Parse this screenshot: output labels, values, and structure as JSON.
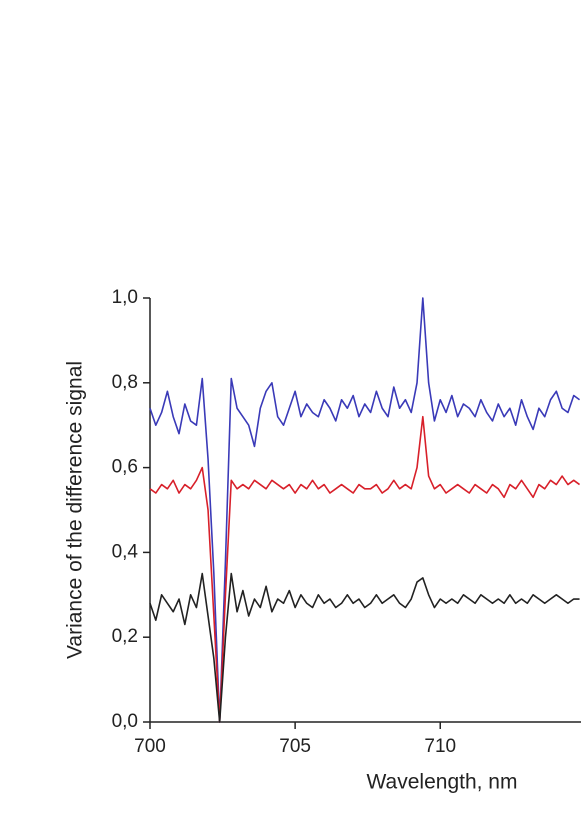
{
  "chart_data": {
    "type": "line",
    "xlabel": "Wavelength, nm",
    "ylabel": "Variance of the difference signal",
    "xlim": [
      700,
      714.85
    ],
    "ylim": [
      0,
      1
    ],
    "xticks": [
      700,
      705,
      710
    ],
    "yticks": [
      {
        "value": 0,
        "label": "0,0"
      },
      {
        "value": 0.2,
        "label": "0,2"
      },
      {
        "value": 0.4,
        "label": "0,4"
      },
      {
        "value": 0.6,
        "label": "0,6"
      },
      {
        "value": 0.8,
        "label": "0,8"
      },
      {
        "value": 1,
        "label": "1,0"
      }
    ],
    "x": [
      700,
      700.2,
      700.4,
      700.6,
      700.8,
      701,
      701.2,
      701.4,
      701.6,
      701.8,
      702,
      702.2,
      702.4,
      702.6,
      702.8,
      703,
      703.2,
      703.4,
      703.6,
      703.8,
      704,
      704.2,
      704.4,
      704.6,
      704.8,
      705,
      705.2,
      705.4,
      705.6,
      705.8,
      706,
      706.2,
      706.4,
      706.6,
      706.8,
      707,
      707.2,
      707.4,
      707.6,
      707.8,
      708,
      708.2,
      708.4,
      708.6,
      708.8,
      709,
      709.2,
      709.4,
      709.6,
      709.8,
      710,
      710.2,
      710.4,
      710.6,
      710.8,
      711,
      711.2,
      711.4,
      711.6,
      711.8,
      712,
      712.2,
      712.4,
      712.6,
      712.8,
      713,
      713.2,
      713.4,
      713.6,
      713.8,
      714,
      714.2,
      714.4,
      714.6,
      714.8
    ],
    "series": [
      {
        "color": "#3a3ab8",
        "values": [
          0.74,
          0.7,
          0.73,
          0.78,
          0.72,
          0.68,
          0.75,
          0.71,
          0.7,
          0.81,
          0.62,
          0.35,
          0.0,
          0.38,
          0.81,
          0.74,
          0.72,
          0.7,
          0.65,
          0.74,
          0.78,
          0.8,
          0.72,
          0.7,
          0.74,
          0.78,
          0.72,
          0.75,
          0.73,
          0.72,
          0.76,
          0.74,
          0.71,
          0.76,
          0.74,
          0.77,
          0.72,
          0.75,
          0.73,
          0.78,
          0.74,
          0.72,
          0.79,
          0.74,
          0.76,
          0.73,
          0.8,
          1.0,
          0.8,
          0.71,
          0.76,
          0.73,
          0.77,
          0.72,
          0.75,
          0.74,
          0.72,
          0.76,
          0.73,
          0.71,
          0.75,
          0.72,
          0.74,
          0.7,
          0.76,
          0.72,
          0.69,
          0.74,
          0.72,
          0.76,
          0.78,
          0.74,
          0.73,
          0.77,
          0.76
        ]
      },
      {
        "color": "#d8202a",
        "values": [
          0.55,
          0.54,
          0.56,
          0.55,
          0.57,
          0.54,
          0.56,
          0.55,
          0.57,
          0.6,
          0.5,
          0.25,
          0.0,
          0.3,
          0.57,
          0.55,
          0.56,
          0.55,
          0.57,
          0.56,
          0.55,
          0.57,
          0.56,
          0.55,
          0.56,
          0.54,
          0.56,
          0.55,
          0.57,
          0.55,
          0.56,
          0.54,
          0.55,
          0.56,
          0.55,
          0.54,
          0.56,
          0.55,
          0.55,
          0.56,
          0.54,
          0.55,
          0.57,
          0.55,
          0.56,
          0.55,
          0.6,
          0.72,
          0.58,
          0.55,
          0.56,
          0.54,
          0.55,
          0.56,
          0.55,
          0.54,
          0.56,
          0.55,
          0.54,
          0.56,
          0.55,
          0.53,
          0.56,
          0.55,
          0.57,
          0.55,
          0.53,
          0.56,
          0.55,
          0.57,
          0.56,
          0.58,
          0.56,
          0.57,
          0.56
        ]
      },
      {
        "color": "#222222",
        "values": [
          0.28,
          0.24,
          0.3,
          0.28,
          0.26,
          0.29,
          0.23,
          0.3,
          0.27,
          0.35,
          0.25,
          0.15,
          0.0,
          0.2,
          0.35,
          0.26,
          0.31,
          0.25,
          0.29,
          0.27,
          0.32,
          0.26,
          0.29,
          0.28,
          0.31,
          0.27,
          0.3,
          0.28,
          0.27,
          0.3,
          0.28,
          0.29,
          0.27,
          0.28,
          0.3,
          0.28,
          0.29,
          0.27,
          0.28,
          0.3,
          0.28,
          0.29,
          0.3,
          0.28,
          0.27,
          0.29,
          0.33,
          0.34,
          0.3,
          0.27,
          0.29,
          0.28,
          0.29,
          0.28,
          0.3,
          0.29,
          0.28,
          0.3,
          0.29,
          0.28,
          0.29,
          0.28,
          0.3,
          0.28,
          0.29,
          0.28,
          0.3,
          0.29,
          0.28,
          0.29,
          0.3,
          0.29,
          0.28,
          0.29,
          0.29
        ]
      }
    ]
  }
}
